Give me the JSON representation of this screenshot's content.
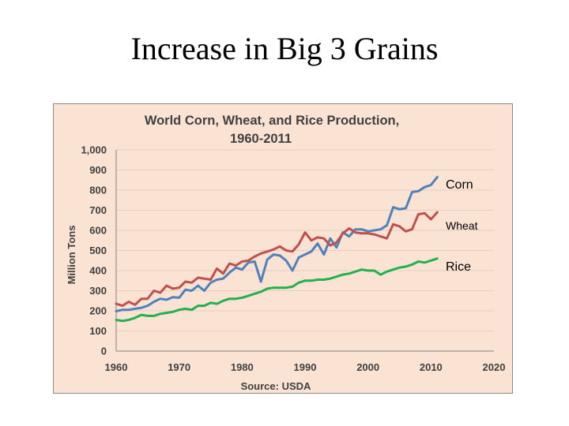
{
  "slide": {
    "title": "Increase in Big 3 Grains"
  },
  "chart_data": {
    "type": "line",
    "title": "World Corn, Wheat, and Rice Production,",
    "subtitle": "1960-2011",
    "xlabel": "Source: USDA",
    "ylabel": "Million Tons",
    "xlim": [
      1960,
      2020
    ],
    "ylim": [
      0,
      1000
    ],
    "xticks": [
      "1960",
      "1970",
      "1980",
      "1990",
      "2000",
      "2010",
      "2020"
    ],
    "yticks": [
      "0",
      "100",
      "200",
      "300",
      "400",
      "500",
      "600",
      "700",
      "800",
      "900",
      "1,000"
    ],
    "grid": "horizontal",
    "colors": {
      "corn": "#4f81bd",
      "wheat": "#c0504d",
      "rice": "#22b14c"
    },
    "x": [
      1960,
      1961,
      1962,
      1963,
      1964,
      1965,
      1966,
      1967,
      1968,
      1969,
      1970,
      1971,
      1972,
      1973,
      1974,
      1975,
      1976,
      1977,
      1978,
      1979,
      1980,
      1981,
      1982,
      1983,
      1984,
      1985,
      1986,
      1987,
      1988,
      1989,
      1990,
      1991,
      1992,
      1993,
      1994,
      1995,
      1996,
      1997,
      1998,
      1999,
      2000,
      2001,
      2002,
      2003,
      2004,
      2005,
      2006,
      2007,
      2008,
      2009,
      2010,
      2011
    ],
    "series": [
      {
        "name": "Corn",
        "key": "corn",
        "values": [
          198,
          205,
          205,
          210,
          215,
          225,
          245,
          260,
          255,
          268,
          265,
          305,
          300,
          325,
          300,
          340,
          355,
          360,
          390,
          415,
          405,
          440,
          445,
          345,
          455,
          480,
          475,
          450,
          400,
          465,
          480,
          495,
          535,
          480,
          560,
          515,
          590,
          570,
          605,
          605,
          595,
          600,
          605,
          625,
          715,
          705,
          710,
          790,
          795,
          815,
          825,
          865
        ]
      },
      {
        "name": "Wheat",
        "key": "wheat",
        "values": [
          235,
          225,
          245,
          230,
          260,
          260,
          300,
          290,
          325,
          310,
          315,
          345,
          340,
          365,
          360,
          355,
          410,
          385,
          435,
          425,
          445,
          450,
          470,
          485,
          495,
          505,
          520,
          500,
          495,
          530,
          590,
          550,
          565,
          560,
          525,
          540,
          585,
          610,
          590,
          585,
          585,
          580,
          570,
          560,
          630,
          620,
          595,
          605,
          680,
          685,
          655,
          690
        ]
      },
      {
        "name": "Rice",
        "key": "rice",
        "values": [
          155,
          150,
          155,
          165,
          180,
          175,
          175,
          185,
          190,
          195,
          205,
          210,
          205,
          225,
          225,
          240,
          235,
          250,
          260,
          260,
          265,
          275,
          285,
          295,
          310,
          315,
          315,
          315,
          320,
          340,
          350,
          350,
          355,
          355,
          360,
          370,
          380,
          385,
          395,
          405,
          400,
          400,
          380,
          395,
          405,
          415,
          420,
          430,
          445,
          440,
          450,
          460
        ]
      }
    ]
  }
}
